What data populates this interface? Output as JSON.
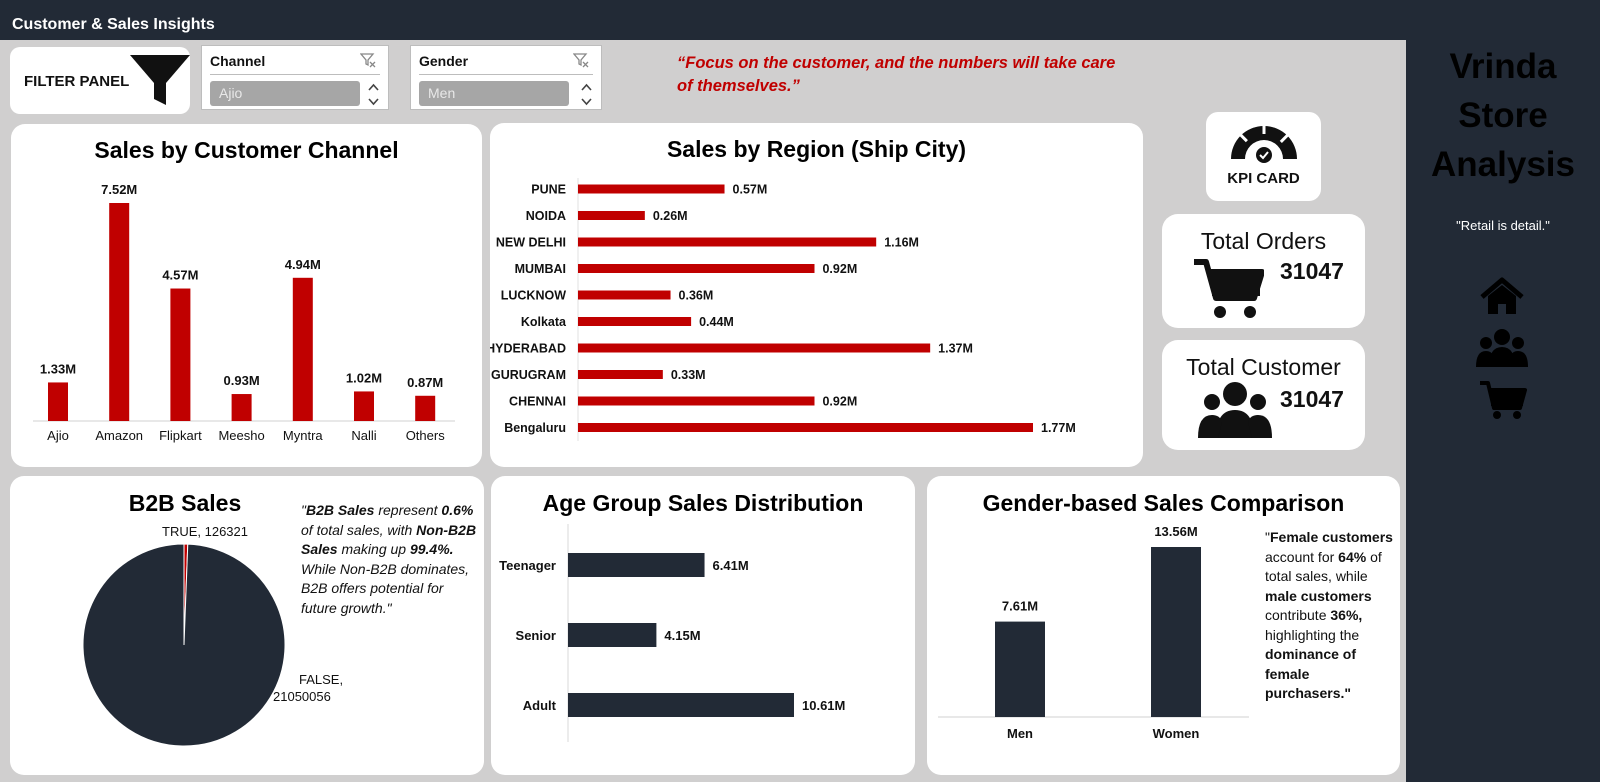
{
  "header": {
    "title": "Customer & Sales Insights"
  },
  "filter_panel": {
    "label": "FILTER PANEL",
    "slicers": [
      {
        "title": "Channel",
        "selected": "Ajio"
      },
      {
        "title": "Gender",
        "selected": "Men"
      }
    ]
  },
  "quote": "“Focus on the customer, and the numbers will take care of themselves.”",
  "brand": {
    "line1": "Vrinda",
    "line2": "Store",
    "line3": "Analysis",
    "tagline": "\"Retail is detail.\""
  },
  "kpi": {
    "card_label": "KPI CARD",
    "total_orders_label": "Total Orders",
    "total_orders_value": "31047",
    "total_customer_label": "Total Customer",
    "total_customer_value": "31047"
  },
  "b2b_note": {
    "q1": "\"",
    "b2b": "B2B Sales",
    "t1": " represent ",
    "pct1": "0.6%",
    "t2": " of total sales, with ",
    "nonb2b": "Non-B2B Sales",
    "t3": " making up ",
    "pct2": "99.4%.",
    "t4": " While Non-B2B dominates, B2B offers potential for future growth.\""
  },
  "gender_note": {
    "q1": "\"",
    "female": "Female customers",
    "t1": " account for ",
    "pct1": "64%",
    "t2": " of total sales, while ",
    "male": "male customers",
    "t3": " contribute ",
    "pct2": "36%,",
    "t4": " highlighting the ",
    "dominance": "dominance of female purchasers.\""
  },
  "colors": {
    "red": "#c00000",
    "navy": "#222a36",
    "background": "#d0cfcf"
  },
  "chart_data": [
    {
      "id": "channel",
      "type": "bar",
      "title": "Sales by Customer Channel",
      "categories": [
        "Ajio",
        "Amazon",
        "Flipkart",
        "Meesho",
        "Myntra",
        "Nalli",
        "Others"
      ],
      "values": [
        1.33,
        7.52,
        4.57,
        0.93,
        4.94,
        1.02,
        0.87
      ],
      "labels": [
        "1.33M",
        "7.52M",
        "4.57M",
        "0.93M",
        "4.94M",
        "1.02M",
        "0.87M"
      ],
      "unit": "M",
      "color": "#c00000"
    },
    {
      "id": "region",
      "type": "bar",
      "orientation": "horizontal",
      "title": "Sales by Region (Ship City)",
      "categories": [
        "PUNE",
        "NOIDA",
        "NEW DELHI",
        "MUMBAI",
        "LUCKNOW",
        "Kolkata",
        "HYDERABAD",
        "GURUGRAM",
        "CHENNAI",
        "Bengaluru"
      ],
      "values": [
        0.57,
        0.26,
        1.16,
        0.92,
        0.36,
        0.44,
        1.37,
        0.33,
        0.92,
        1.77
      ],
      "labels": [
        "0.57M",
        "0.26M",
        "1.16M",
        "0.92M",
        "0.36M",
        "0.44M",
        "1.37M",
        "0.33M",
        "0.92M",
        "1.77M"
      ],
      "unit": "M",
      "color": "#c00000"
    },
    {
      "id": "b2b",
      "type": "pie",
      "title": "B2B Sales",
      "categories": [
        "TRUE",
        "FALSE"
      ],
      "values": [
        126321,
        21050056
      ],
      "labels": [
        "TRUE, 126321",
        "FALSE,",
        "21050056"
      ],
      "colors": [
        "#c00000",
        "#222a36"
      ]
    },
    {
      "id": "age",
      "type": "bar",
      "orientation": "horizontal",
      "title": "Age Group Sales Distribution",
      "categories": [
        "Teenager",
        "Senior",
        "Adult"
      ],
      "values": [
        6.41,
        4.15,
        10.61
      ],
      "labels": [
        "6.41M",
        "4.15M",
        "10.61M"
      ],
      "unit": "M",
      "color": "#222a36"
    },
    {
      "id": "gender",
      "type": "bar",
      "title": "Gender-based Sales Comparison",
      "categories": [
        "Men",
        "Women"
      ],
      "values": [
        7.61,
        13.56
      ],
      "labels": [
        "7.61M",
        "13.56M"
      ],
      "unit": "M",
      "color": "#222a36"
    }
  ]
}
